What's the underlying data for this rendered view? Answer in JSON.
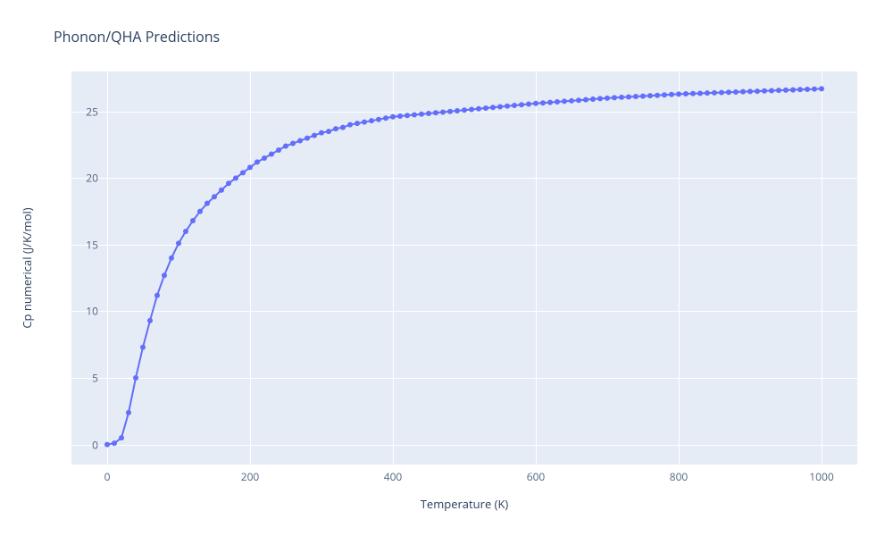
{
  "chart": {
    "type": "line",
    "title": "Phonon/QHA Predictions",
    "title_fontsize": 16,
    "title_color": "#2a3f5f",
    "background_color": "#ffffff",
    "plot_background_color": "#e5ecf6",
    "grid_color": "#ffffff",
    "tick_font_color": "#506784",
    "tick_fontsize": 12,
    "axis_title_fontsize": 13,
    "axis_title_color": "#2a3f5f",
    "xlabel": "Temperature (K)",
    "ylabel": "Cp numerical (J/K/mol)",
    "xlim": [
      -50,
      1050
    ],
    "ylim": [
      -1.5,
      28
    ],
    "xticks": [
      0,
      200,
      400,
      600,
      800,
      1000
    ],
    "yticks": [
      0,
      5,
      10,
      15,
      20,
      25
    ],
    "series": {
      "line_color": "#636efa",
      "line_width": 2,
      "marker_color": "#636efa",
      "marker_size": 6,
      "marker_style": "circle",
      "x": [
        0,
        10,
        20,
        30,
        40,
        50,
        60,
        70,
        80,
        90,
        100,
        110,
        120,
        130,
        140,
        150,
        160,
        170,
        180,
        190,
        200,
        210,
        220,
        230,
        240,
        250,
        260,
        270,
        280,
        290,
        300,
        310,
        320,
        330,
        340,
        350,
        360,
        370,
        380,
        390,
        400,
        410,
        420,
        430,
        440,
        450,
        460,
        470,
        480,
        490,
        500,
        510,
        520,
        530,
        540,
        550,
        560,
        570,
        580,
        590,
        600,
        610,
        620,
        630,
        640,
        650,
        660,
        670,
        680,
        690,
        700,
        710,
        720,
        730,
        740,
        750,
        760,
        770,
        780,
        790,
        800,
        810,
        820,
        830,
        840,
        850,
        860,
        870,
        880,
        890,
        900,
        910,
        920,
        930,
        940,
        950,
        960,
        970,
        980,
        990,
        1000
      ],
      "y": [
        0,
        0.1,
        0.5,
        2.4,
        5.0,
        7.3,
        9.3,
        11.2,
        12.7,
        14.0,
        15.1,
        16.0,
        16.8,
        17.5,
        18.1,
        18.6,
        19.1,
        19.6,
        20.0,
        20.4,
        20.8,
        21.2,
        21.5,
        21.8,
        22.1,
        22.4,
        22.6,
        22.8,
        23.0,
        23.2,
        23.4,
        23.5,
        23.7,
        23.8,
        24.0,
        24.1,
        24.2,
        24.3,
        24.4,
        24.5,
        24.6,
        24.65,
        24.7,
        24.75,
        24.8,
        24.85,
        24.9,
        24.95,
        25.0,
        25.05,
        25.1,
        25.15,
        25.2,
        25.25,
        25.3,
        25.35,
        25.4,
        25.45,
        25.5,
        25.55,
        25.6,
        25.64,
        25.68,
        25.72,
        25.76,
        25.8,
        25.84,
        25.88,
        25.92,
        25.96,
        26.0,
        26.03,
        26.06,
        26.09,
        26.12,
        26.15,
        26.18,
        26.21,
        26.24,
        26.27,
        26.3,
        26.32,
        26.34,
        26.36,
        26.38,
        26.4,
        26.42,
        26.44,
        26.46,
        26.48,
        26.5,
        26.52,
        26.54,
        26.56,
        26.58,
        26.6,
        26.62,
        26.64,
        26.66,
        26.68,
        26.7
      ]
    }
  }
}
